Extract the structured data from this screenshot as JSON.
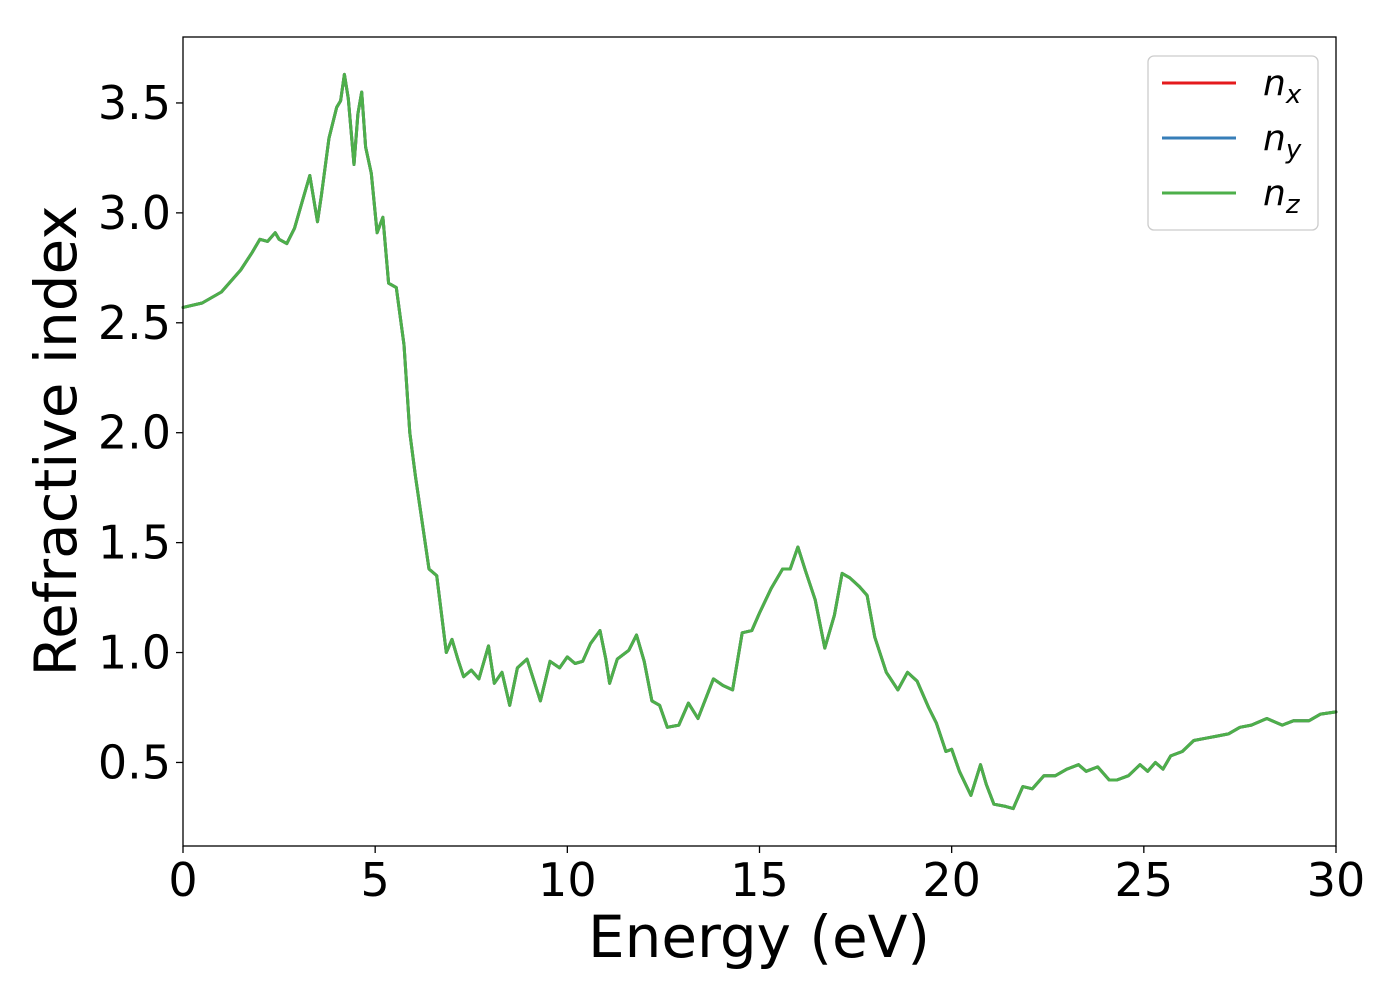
{
  "chart_data": {
    "type": "line",
    "xlabel": "Energy (eV)",
    "ylabel": "Refractive index",
    "xlim": [
      0,
      30
    ],
    "ylim": [
      0.12,
      3.8
    ],
    "x_ticks": [
      0,
      5,
      10,
      15,
      20,
      25,
      30
    ],
    "y_ticks": [
      0.5,
      1.0,
      1.5,
      2.0,
      2.5,
      3.0,
      3.5
    ],
    "x_tick_labels": [
      "0",
      "5",
      "10",
      "15",
      "20",
      "25",
      "30"
    ],
    "y_tick_labels": [
      "0.5",
      "1.0",
      "1.5",
      "2.0",
      "2.5",
      "3.0",
      "3.5"
    ],
    "grid": false,
    "legend_position": "top-right",
    "x": [
      0,
      0.5,
      1.0,
      1.5,
      1.8,
      2.0,
      2.2,
      2.4,
      2.5,
      2.7,
      2.9,
      3.1,
      3.3,
      3.5,
      3.6,
      3.8,
      4.0,
      4.1,
      4.2,
      4.3,
      4.45,
      4.55,
      4.65,
      4.75,
      4.9,
      5.05,
      5.2,
      5.35,
      5.55,
      5.75,
      5.9,
      6.05,
      6.2,
      6.4,
      6.6,
      6.85,
      7.0,
      7.15,
      7.3,
      7.5,
      7.7,
      7.95,
      8.1,
      8.3,
      8.5,
      8.7,
      8.95,
      9.3,
      9.55,
      9.8,
      10.0,
      10.2,
      10.4,
      10.6,
      10.85,
      11.0,
      11.1,
      11.3,
      11.6,
      11.8,
      12.0,
      12.2,
      12.4,
      12.6,
      12.9,
      13.15,
      13.4,
      13.8,
      14.05,
      14.3,
      14.55,
      14.8,
      15.0,
      15.3,
      15.6,
      15.8,
      16.0,
      16.2,
      16.45,
      16.7,
      16.95,
      17.15,
      17.35,
      17.6,
      17.8,
      18.0,
      18.3,
      18.6,
      18.85,
      19.1,
      19.4,
      19.6,
      19.85,
      20.0,
      20.2,
      20.5,
      20.75,
      20.9,
      21.1,
      21.4,
      21.6,
      21.85,
      22.1,
      22.4,
      22.7,
      23.0,
      23.3,
      23.5,
      23.8,
      24.1,
      24.3,
      24.6,
      24.9,
      25.1,
      25.3,
      25.5,
      25.7,
      26.0,
      26.3,
      26.6,
      26.9,
      27.2,
      27.5,
      27.8,
      28.2,
      28.6,
      28.9,
      29.3,
      29.6,
      30.0
    ],
    "series": [
      {
        "name": "n_x",
        "color": "#e41a1c",
        "values": [
          2.57,
          2.59,
          2.64,
          2.74,
          2.82,
          2.88,
          2.87,
          2.91,
          2.88,
          2.86,
          2.93,
          3.05,
          3.17,
          2.96,
          3.08,
          3.34,
          3.48,
          3.51,
          3.63,
          3.52,
          3.22,
          3.45,
          3.55,
          3.3,
          3.18,
          2.91,
          2.98,
          2.68,
          2.66,
          2.4,
          2.0,
          1.8,
          1.62,
          1.38,
          1.35,
          1.0,
          1.06,
          0.97,
          0.89,
          0.92,
          0.88,
          1.03,
          0.86,
          0.91,
          0.76,
          0.93,
          0.97,
          0.78,
          0.96,
          0.93,
          0.98,
          0.95,
          0.96,
          1.04,
          1.1,
          0.97,
          0.86,
          0.97,
          1.01,
          1.08,
          0.96,
          0.78,
          0.76,
          0.66,
          0.67,
          0.77,
          0.7,
          0.88,
          0.85,
          0.83,
          1.09,
          1.1,
          1.18,
          1.29,
          1.38,
          1.38,
          1.48,
          1.37,
          1.24,
          1.02,
          1.17,
          1.36,
          1.34,
          1.3,
          1.26,
          1.07,
          0.91,
          0.83,
          0.91,
          0.87,
          0.75,
          0.68,
          0.55,
          0.56,
          0.46,
          0.35,
          0.49,
          0.4,
          0.31,
          0.3,
          0.29,
          0.39,
          0.38,
          0.44,
          0.44,
          0.47,
          0.49,
          0.46,
          0.48,
          0.42,
          0.42,
          0.44,
          0.49,
          0.46,
          0.5,
          0.47,
          0.53,
          0.55,
          0.6,
          0.61,
          0.62,
          0.63,
          0.66,
          0.67,
          0.7,
          0.67,
          0.69,
          0.69,
          0.72,
          0.73
        ]
      },
      {
        "name": "n_y",
        "color": "#377eb8",
        "values": [
          2.57,
          2.59,
          2.64,
          2.74,
          2.82,
          2.88,
          2.87,
          2.91,
          2.88,
          2.86,
          2.93,
          3.05,
          3.17,
          2.96,
          3.08,
          3.34,
          3.48,
          3.51,
          3.63,
          3.52,
          3.22,
          3.45,
          3.55,
          3.3,
          3.18,
          2.91,
          2.98,
          2.68,
          2.66,
          2.4,
          2.0,
          1.8,
          1.62,
          1.38,
          1.35,
          1.0,
          1.06,
          0.97,
          0.89,
          0.92,
          0.88,
          1.03,
          0.86,
          0.91,
          0.76,
          0.93,
          0.97,
          0.78,
          0.96,
          0.93,
          0.98,
          0.95,
          0.96,
          1.04,
          1.1,
          0.97,
          0.86,
          0.97,
          1.01,
          1.08,
          0.96,
          0.78,
          0.76,
          0.66,
          0.67,
          0.77,
          0.7,
          0.88,
          0.85,
          0.83,
          1.09,
          1.1,
          1.18,
          1.29,
          1.38,
          1.38,
          1.48,
          1.37,
          1.24,
          1.02,
          1.17,
          1.36,
          1.34,
          1.3,
          1.26,
          1.07,
          0.91,
          0.83,
          0.91,
          0.87,
          0.75,
          0.68,
          0.55,
          0.56,
          0.46,
          0.35,
          0.49,
          0.4,
          0.31,
          0.3,
          0.29,
          0.39,
          0.38,
          0.44,
          0.44,
          0.47,
          0.49,
          0.46,
          0.48,
          0.42,
          0.42,
          0.44,
          0.49,
          0.46,
          0.5,
          0.47,
          0.53,
          0.55,
          0.6,
          0.61,
          0.62,
          0.63,
          0.66,
          0.67,
          0.7,
          0.67,
          0.69,
          0.69,
          0.72,
          0.73
        ]
      },
      {
        "name": "n_z",
        "color": "#4daf4a",
        "values": [
          2.57,
          2.59,
          2.64,
          2.74,
          2.82,
          2.88,
          2.87,
          2.91,
          2.88,
          2.86,
          2.93,
          3.05,
          3.17,
          2.96,
          3.08,
          3.34,
          3.48,
          3.51,
          3.63,
          3.52,
          3.22,
          3.45,
          3.55,
          3.3,
          3.18,
          2.91,
          2.98,
          2.68,
          2.66,
          2.4,
          2.0,
          1.8,
          1.62,
          1.38,
          1.35,
          1.0,
          1.06,
          0.97,
          0.89,
          0.92,
          0.88,
          1.03,
          0.86,
          0.91,
          0.76,
          0.93,
          0.97,
          0.78,
          0.96,
          0.93,
          0.98,
          0.95,
          0.96,
          1.04,
          1.1,
          0.97,
          0.86,
          0.97,
          1.01,
          1.08,
          0.96,
          0.78,
          0.76,
          0.66,
          0.67,
          0.77,
          0.7,
          0.88,
          0.85,
          0.83,
          1.09,
          1.1,
          1.18,
          1.29,
          1.38,
          1.38,
          1.48,
          1.37,
          1.24,
          1.02,
          1.17,
          1.36,
          1.34,
          1.3,
          1.26,
          1.07,
          0.91,
          0.83,
          0.91,
          0.87,
          0.75,
          0.68,
          0.55,
          0.56,
          0.46,
          0.35,
          0.49,
          0.4,
          0.31,
          0.3,
          0.29,
          0.39,
          0.38,
          0.44,
          0.44,
          0.47,
          0.49,
          0.46,
          0.48,
          0.42,
          0.42,
          0.44,
          0.49,
          0.46,
          0.5,
          0.47,
          0.53,
          0.55,
          0.6,
          0.61,
          0.62,
          0.63,
          0.66,
          0.67,
          0.7,
          0.67,
          0.69,
          0.69,
          0.72,
          0.73
        ]
      }
    ],
    "legend": [
      {
        "symbol": "n",
        "subscript": "x",
        "color": "#e41a1c"
      },
      {
        "symbol": "n",
        "subscript": "y",
        "color": "#377eb8"
      },
      {
        "symbol": "n",
        "subscript": "z",
        "color": "#4daf4a"
      }
    ]
  }
}
